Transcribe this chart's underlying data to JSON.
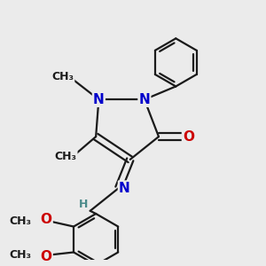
{
  "bg_color": "#ebebeb",
  "bond_color": "#1a1a1a",
  "n_color": "#0000cc",
  "o_color": "#cc0000",
  "h_color": "#4a8a8a",
  "line_width": 1.6,
  "fig_w": 3.0,
  "fig_h": 3.0,
  "dpi": 100,
  "xlim": [
    -1.0,
    2.2
  ],
  "ylim": [
    -2.5,
    2.0
  ]
}
